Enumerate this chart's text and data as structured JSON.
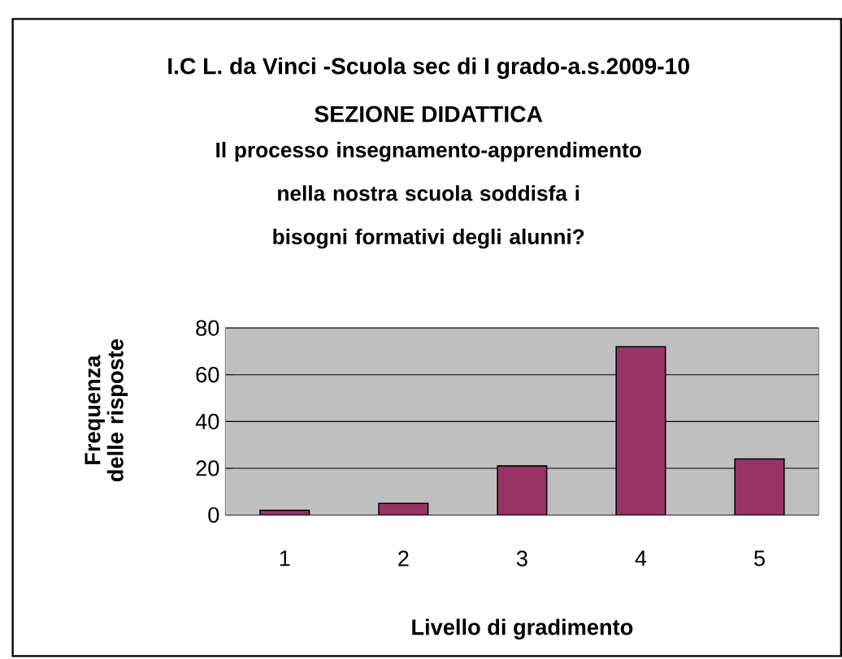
{
  "chart_data": {
    "type": "bar",
    "title": "I.C L. da Vinci -Scuola sec di I grado-a.s.2009-10",
    "subtitle": "SEZIONE DIDATTICA",
    "annotations": [
      "Il processo insegnamento-apprendimento  nella nostra scuola soddisfa i bisogni formativi degli alunni?"
    ],
    "xlabel": "Livello di gradimento",
    "ylabel": "Frequenza delle risposte",
    "categories": [
      "1",
      "2",
      "3",
      "4",
      "5"
    ],
    "values": [
      2,
      5,
      21,
      72,
      24
    ],
    "color": "#993366",
    "ylim": [
      0,
      80
    ],
    "yticks": [
      0,
      20,
      40,
      60,
      80
    ],
    "grid": "y"
  }
}
